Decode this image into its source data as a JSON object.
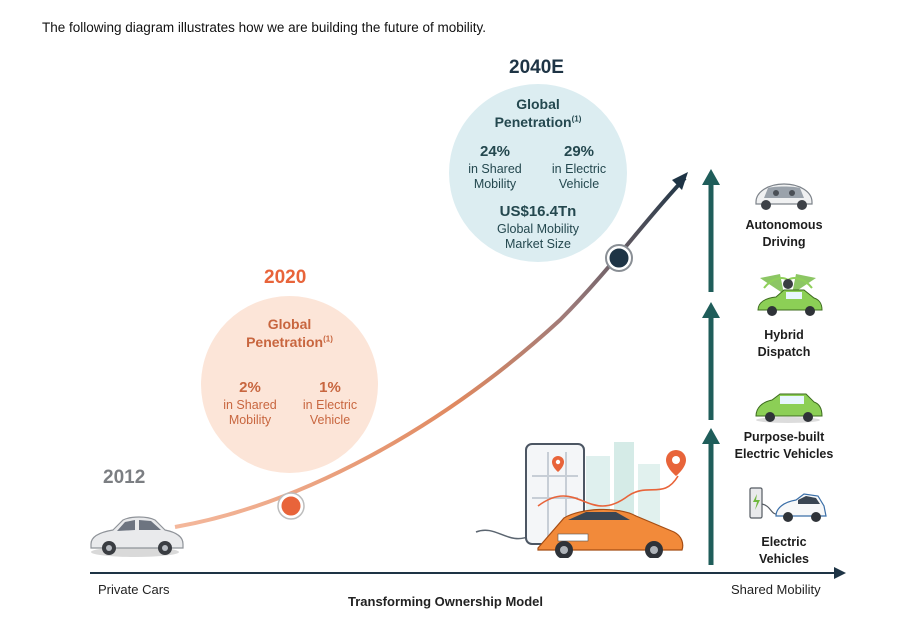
{
  "intro": "The following diagram illustrates how we are building the future of mobility.",
  "years": {
    "y2012": "2012",
    "y2020": "2020",
    "y2040": "2040E"
  },
  "circle2020": {
    "title_line1": "Global",
    "title_line2": "Penetration",
    "superscript": "(1)",
    "stat1_value": "2%",
    "stat1_line1": "in Shared",
    "stat1_line2": "Mobility",
    "stat2_value": "1%",
    "stat2_line1": "in Electric",
    "stat2_line2": "Vehicle"
  },
  "circle2040": {
    "title_line1": "Global",
    "title_line2": "Penetration",
    "superscript": "(1)",
    "stat1_value": "24%",
    "stat1_line1": "in Shared",
    "stat1_line2": "Mobility",
    "stat2_value": "29%",
    "stat2_line1": "in Electric",
    "stat2_line2": "Vehicle",
    "market_value": "US$16.4Tn",
    "market_line1": "Global Mobility",
    "market_line2": "Market Size"
  },
  "stages": [
    {
      "line1": "Autonomous",
      "line2": "Driving"
    },
    {
      "line1": "Hybrid",
      "line2": "Dispatch"
    },
    {
      "line1": "Purpose-built",
      "line2": "Electric Vehicles"
    },
    {
      "line1": "Electric",
      "line2": "Vehicles"
    }
  ],
  "axis": {
    "left": "Private Cars",
    "center": "Transforming Ownership Model",
    "right": "Shared Mobility"
  },
  "icons": [
    "private-car-icon",
    "city-app-map-icon",
    "autonomous-car-icon",
    "hybrid-dispatch-car-icon",
    "purpose-built-ev-icon",
    "ev-charging-icon"
  ],
  "colors": {
    "orange": "#e8643a",
    "orange_text": "#c8663f",
    "peach": "#fce5d8",
    "teal": "#1f5d5a",
    "navy": "#1e3445",
    "lightblue": "#dcedf1"
  }
}
